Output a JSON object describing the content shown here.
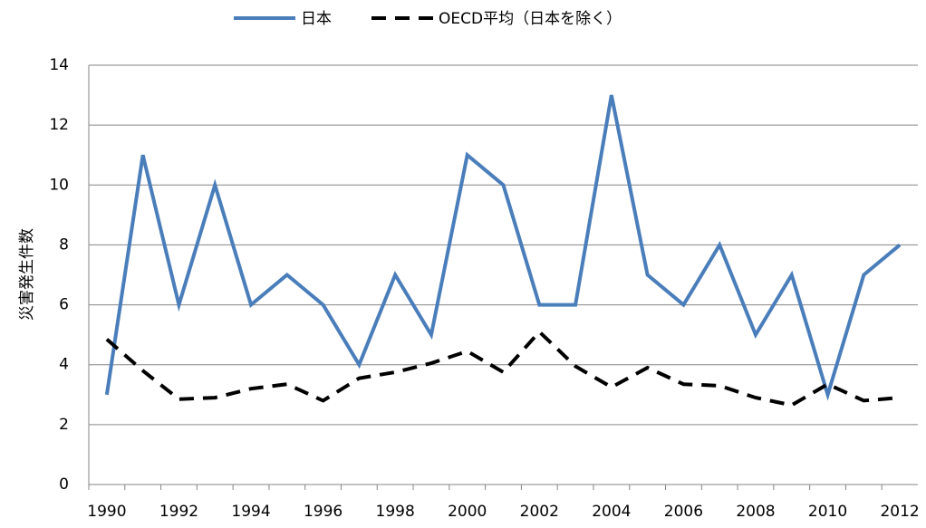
{
  "chart_data": {
    "type": "line",
    "ylabel": "災害発生件数",
    "categories": [
      "1990",
      null,
      "1992",
      null,
      "1994",
      null,
      "1996",
      null,
      "1998",
      null,
      "2000",
      null,
      "2002",
      null,
      "2004",
      null,
      "2006",
      null,
      "2008",
      null,
      "2010",
      null,
      "2012"
    ],
    "series": [
      {
        "name": "日本",
        "color": "#4a7ebb",
        "style": "solid",
        "values": [
          3,
          11,
          6,
          10,
          6,
          7,
          6,
          4,
          7,
          5,
          11,
          10,
          6,
          6,
          13,
          7,
          6,
          8,
          5,
          7,
          3,
          7,
          8
        ]
      },
      {
        "name": "OECD平均（日本を除く）",
        "color": "#000000",
        "style": "dashed",
        "values": [
          4.85,
          3.8,
          2.85,
          2.9,
          3.2,
          3.35,
          2.8,
          3.55,
          3.75,
          4.05,
          4.45,
          3.75,
          5.1,
          3.95,
          3.25,
          3.9,
          3.35,
          3.3,
          2.9,
          2.65,
          3.35,
          2.8,
          2.9
        ]
      }
    ],
    "ylim": [
      0,
      14
    ],
    "yticks": [
      0,
      2,
      4,
      6,
      8,
      10,
      12,
      14
    ],
    "grid": true,
    "legend": "top"
  }
}
